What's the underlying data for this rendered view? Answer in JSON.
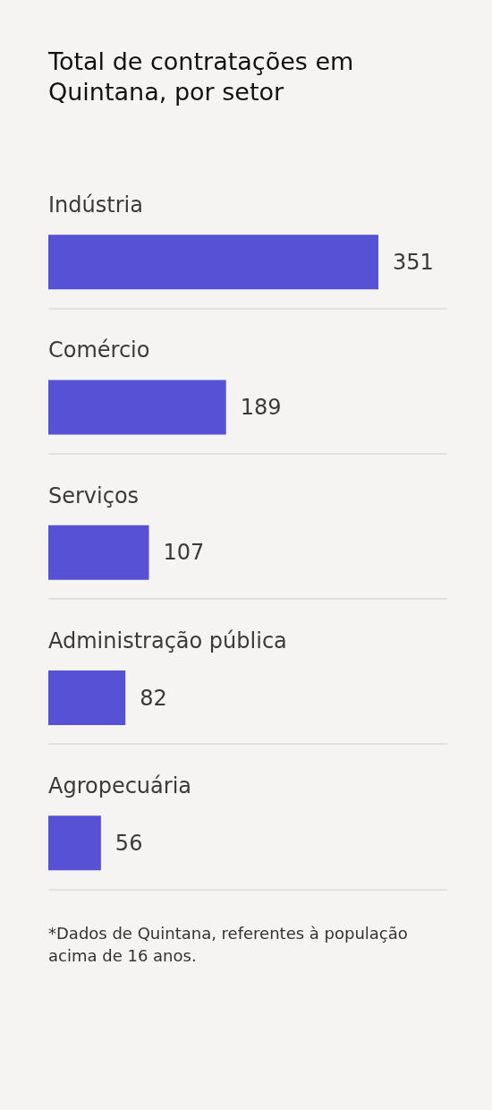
{
  "chart_data": {
    "type": "bar",
    "orientation": "horizontal",
    "title": "Total de contratações em Quintana, por setor",
    "categories": [
      "Indústria",
      "Comércio",
      "Serviços",
      "Administração pública",
      "Agropecuária"
    ],
    "values": [
      351,
      189,
      107,
      82,
      56
    ],
    "color": "#5751d5",
    "data_labels": true,
    "grid": "y",
    "tick_labels": "y",
    "annotations": [
      "*Dados de Quintana, referentes à população acima de 16 anos."
    ]
  }
}
